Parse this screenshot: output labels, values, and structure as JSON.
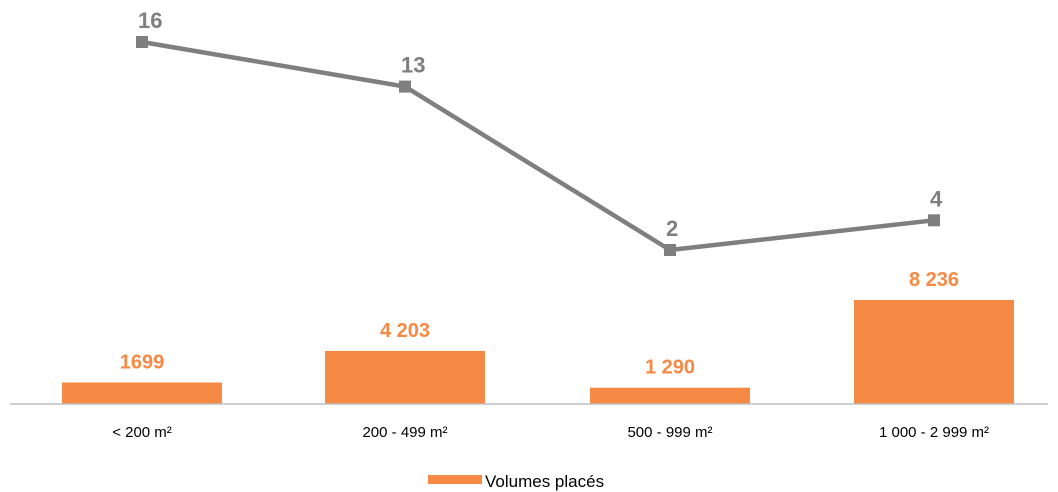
{
  "colors": {
    "bar": "#F68A45",
    "line": "#7F7F7F",
    "axis": "#BFBFBF",
    "background": "#FFFFFF"
  },
  "chart_data": {
    "type": "bar",
    "title": "",
    "xlabel": "",
    "ylabel": "",
    "categories": [
      "< 200 m²",
      "200 - 499 m²",
      "500 - 999 m²",
      "1 000 - 2 999 m²"
    ],
    "series": [
      {
        "name": "Volumes placés",
        "type": "bar",
        "values": [
          1699,
          4203,
          1290,
          8236
        ],
        "labels": [
          "1699",
          "4 203",
          "1 290",
          "8 236"
        ]
      },
      {
        "type": "line",
        "marker": "square",
        "values": [
          16,
          13,
          2,
          4
        ],
        "labels": [
          "16",
          "13",
          "2",
          "4"
        ]
      }
    ],
    "grid": false,
    "legend": "bottom"
  }
}
